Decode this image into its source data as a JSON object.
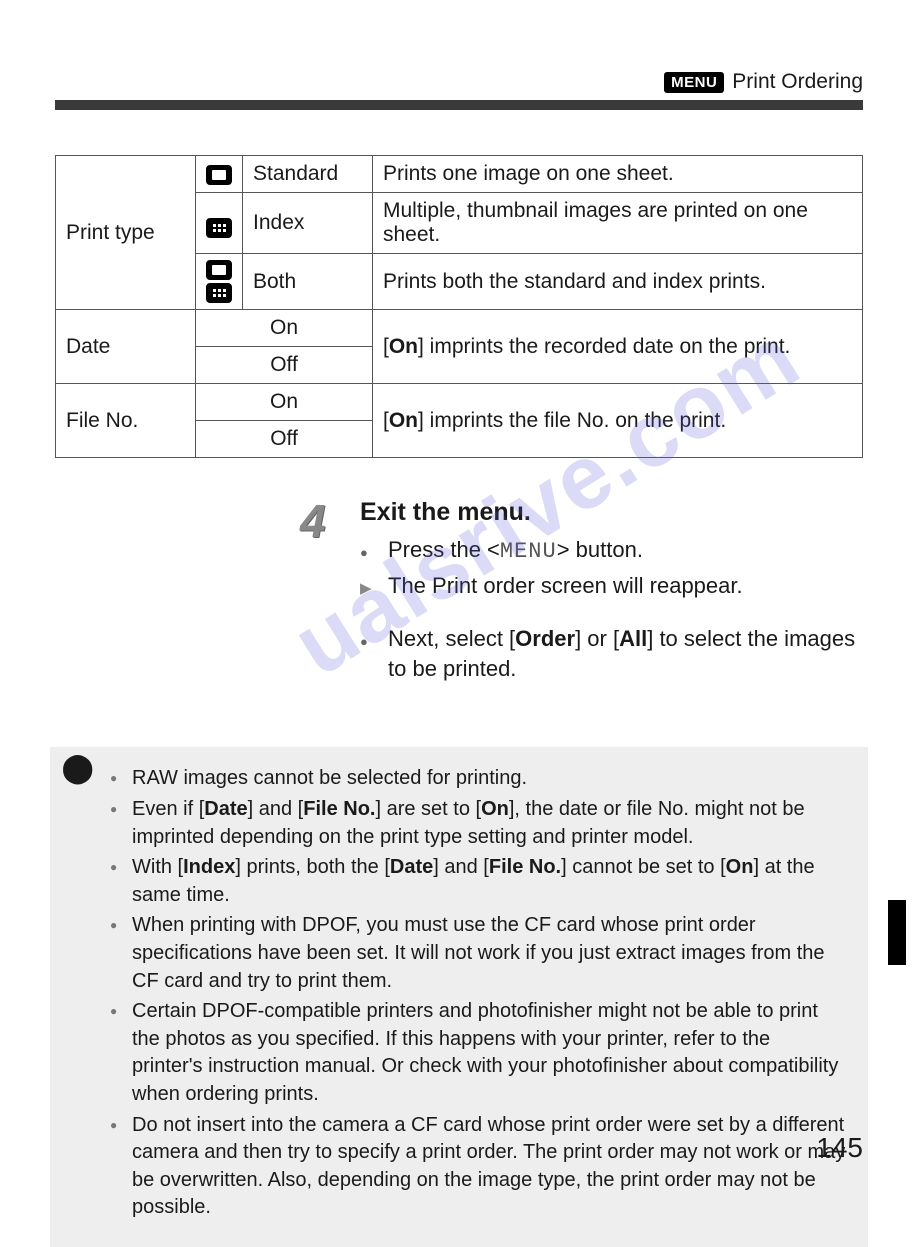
{
  "header": {
    "badge": "MENU",
    "title": "Print Ordering"
  },
  "table": {
    "print_type_label": "Print type",
    "standard": {
      "name": "Standard",
      "desc": "Prints one image on one sheet."
    },
    "index": {
      "name": "Index",
      "desc": "Multiple, thumbnail images are printed on one sheet."
    },
    "both": {
      "name": "Both",
      "desc": "Prints both the standard and index prints."
    },
    "date": {
      "label": "Date",
      "on": "On",
      "off": "Off",
      "desc_pre": "[",
      "desc_b": "On",
      "desc_post": "] imprints the recorded date on the print."
    },
    "fileno": {
      "label": "File No.",
      "on": "On",
      "off": "Off",
      "desc_pre": "[",
      "desc_b": "On",
      "desc_post": "] imprints the file No. on the print."
    }
  },
  "step": {
    "num": "4",
    "title": "Exit the menu.",
    "l1_pre": "Press the <",
    "l1_key": "MENU",
    "l1_post": "> button.",
    "l2": "The Print order screen will reappear.",
    "l3_pre": "Next, select [",
    "l3_b1": "Order",
    "l3_mid": "] or [",
    "l3_b2": "All",
    "l3_post": "] to select the images to be printed."
  },
  "notes": {
    "n1": "RAW images cannot be selected for printing.",
    "n2_a": "Even if [",
    "n2_b1": "Date",
    "n2_b": "] and [",
    "n2_b2": "File No.",
    "n2_c": "] are set to [",
    "n2_b3": "On",
    "n2_d": "], the date or file No. might not be imprinted depending on the print type setting and printer model.",
    "n3_a": "With [",
    "n3_b1": "Index",
    "n3_b": "] prints, both the [",
    "n3_b2": "Date",
    "n3_c": "] and [",
    "n3_b3": "File No.",
    "n3_d": "] cannot be set to [",
    "n3_b4": "On",
    "n3_e": "] at the same time.",
    "n4": "When printing with DPOF, you must use the CF card whose print order specifications have been set. It will not work if you just extract images from the CF card and try to print them.",
    "n5": "Certain DPOF-compatible printers and photofinisher might not be able to print the photos as you specified. If this happens with your printer, refer to the printer's instruction manual. Or check with your photofinisher about compatibility when ordering prints.",
    "n6": "Do not insert into the camera a CF card whose print order were set by a different camera and then try to specify a print order. The print order may not work or may be overwritten. Also, depending on the image type, the print order may not be possible."
  },
  "page_number": "145",
  "watermark": "ualsrive.com",
  "colors": {
    "text": "#1a1a1a",
    "note_bg": "#eeeeee",
    "bar": "#3a3a3a",
    "watermark": "rgba(90,90,220,0.22)"
  }
}
